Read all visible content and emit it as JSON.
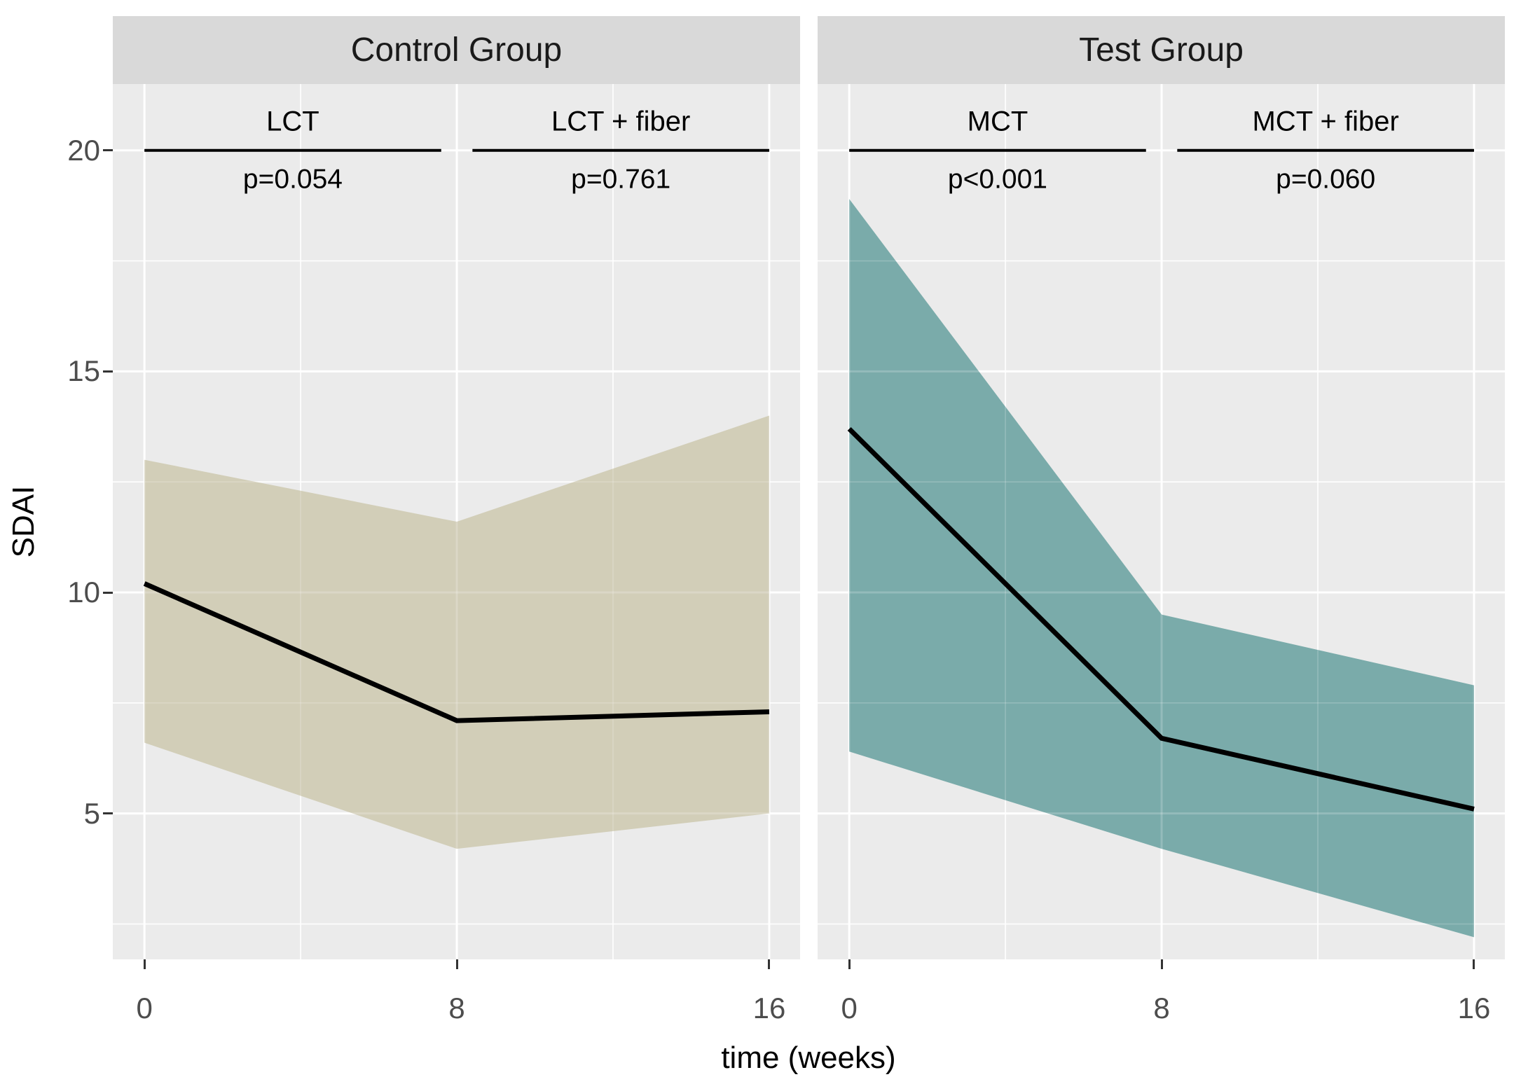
{
  "figure": {
    "background": "#ffffff"
  },
  "chart_data": {
    "type": "line",
    "faceted": true,
    "title": "",
    "xlabel": "time (weeks)",
    "ylabel": "SDAI",
    "x_ticks": [
      0,
      8,
      16
    ],
    "y_ticks": [
      5,
      10,
      15,
      20
    ],
    "x_minor_ticks": [
      4,
      12
    ],
    "y_minor_ticks": [
      2.5,
      7.5,
      12.5,
      17.5
    ],
    "xlim": [
      -0.81,
      16.79
    ],
    "ylim": [
      1.7,
      21.5
    ],
    "grid": "white major and minor gridlines on grey panel",
    "legend": "none",
    "colors": {
      "panel_background": "#ebebeb",
      "strip_background": "#d9d9d9",
      "strip_text": "#1a1a1a",
      "gridline": "#ffffff",
      "axis_text": "#4d4d4d",
      "axis_title": "#000000",
      "tick_mark": "#333333",
      "mean_line": "#000000",
      "bracket_line": "#000000",
      "control_ribbon": "#d2ceb8",
      "test_ribbon": "#7aabaa"
    },
    "panels": [
      {
        "title": "Control Group",
        "ribbon_color_key": "control_ribbon",
        "x": [
          0,
          8,
          16
        ],
        "mean": [
          10.2,
          7.1,
          7.3
        ],
        "upper": [
          13.0,
          11.6,
          14.0
        ],
        "lower": [
          6.6,
          4.2,
          5.0
        ],
        "annotations": [
          {
            "label": "LCT",
            "p_value": "p=0.054",
            "x_start": 0,
            "x_end": 7.6,
            "y": 20
          },
          {
            "label": "LCT + fiber",
            "p_value": "p=0.761",
            "x_start": 8.4,
            "x_end": 16,
            "y": 20
          }
        ]
      },
      {
        "title": "Test Group",
        "ribbon_color_key": "test_ribbon",
        "x": [
          0,
          8,
          16
        ],
        "mean": [
          13.7,
          6.7,
          5.1
        ],
        "upper": [
          18.9,
          9.5,
          7.9
        ],
        "lower": [
          6.4,
          4.2,
          2.2
        ],
        "annotations": [
          {
            "label": "MCT",
            "p_value": "p<0.001",
            "x_start": 0,
            "x_end": 7.6,
            "y": 20
          },
          {
            "label": "MCT + fiber",
            "p_value": "p=0.060",
            "x_start": 8.4,
            "x_end": 16,
            "y": 20
          }
        ]
      }
    ]
  }
}
